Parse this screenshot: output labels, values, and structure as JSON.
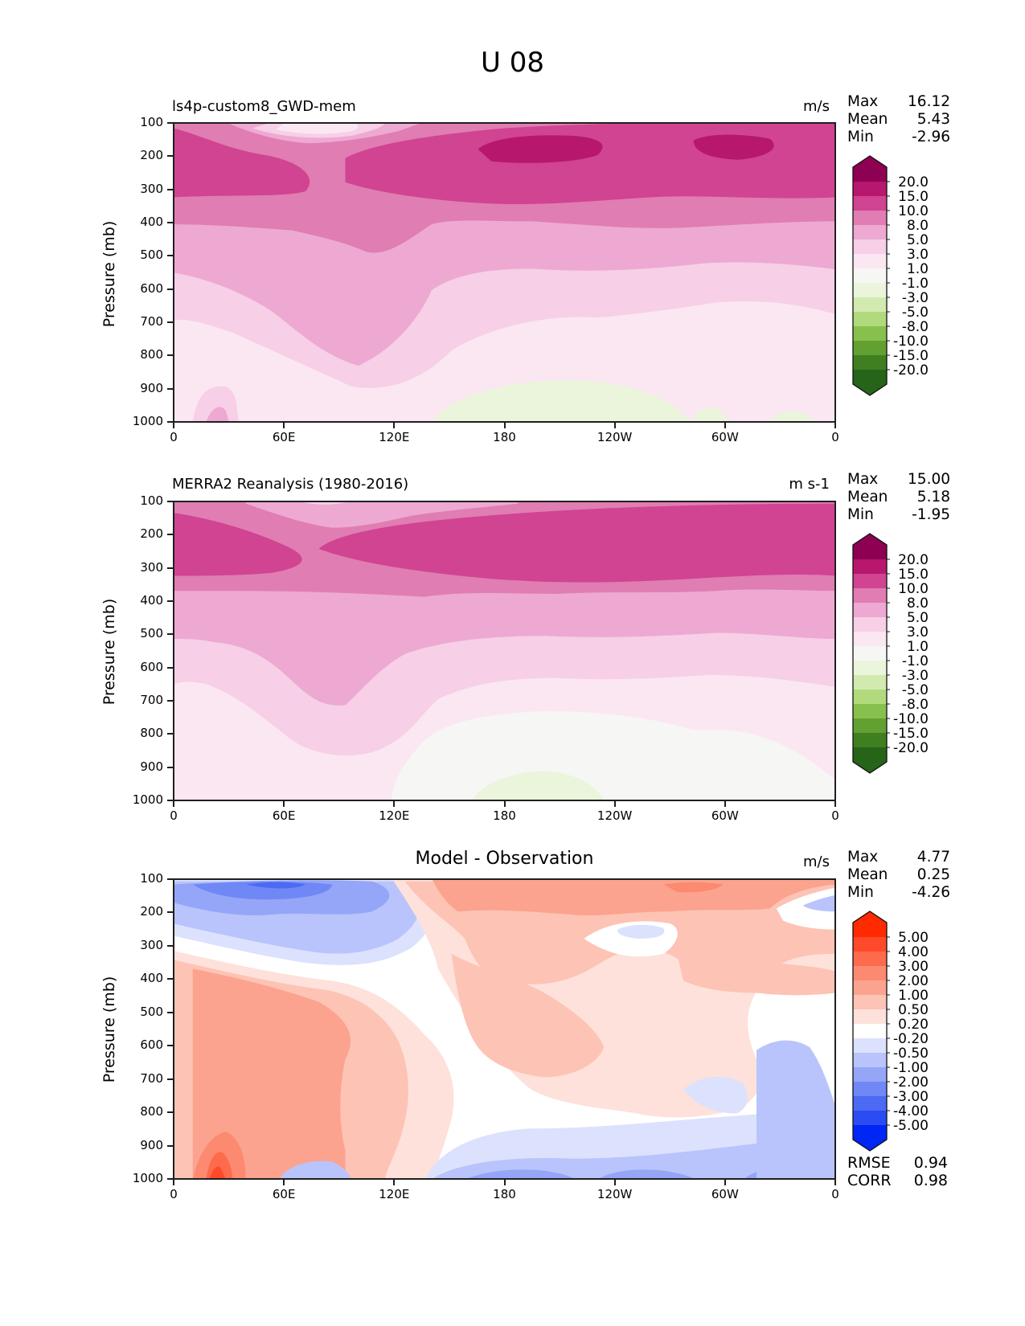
{
  "figure": {
    "title": "U 08"
  },
  "chart_data": [
    {
      "type": "heatmap",
      "subtype": "filled-contour",
      "title": "ls4p-custom8_GWD-mem",
      "units": "m/s",
      "xlabel": "",
      "ylabel": "Pressure (mb)",
      "x_ticks": [
        "0",
        "60E",
        "120E",
        "180",
        "120W",
        "60W",
        "0"
      ],
      "x_range": [
        "0",
        "360 (0)"
      ],
      "y_ticks": [
        "100",
        "200",
        "300",
        "400",
        "500",
        "600",
        "700",
        "800",
        "900",
        "1000"
      ],
      "ylim": [
        1000,
        100
      ],
      "stats": {
        "max_label": "Max",
        "max": "16.12",
        "mean_label": "Mean",
        "mean": "5.43",
        "min_label": "Min",
        "min": "-2.96"
      },
      "colorbar": {
        "levels": [
          "20.0",
          "15.0",
          "10.0",
          "8.0",
          "5.0",
          "3.0",
          "1.0",
          "-1.0",
          "-3.0",
          "-5.0",
          "-8.0",
          "-10.0",
          "-15.0",
          "-20.0"
        ],
        "colors": [
          "#8e0152",
          "#b8176e",
          "#d04492",
          "#e07db2",
          "#eda9d2",
          "#f7cfe6",
          "#fbe7f1",
          "#f6f6f4",
          "#eaf5dc",
          "#d2eab0",
          "#b0da7c",
          "#88c04d",
          "#63a032",
          "#3f7f20",
          "#266419"
        ],
        "extend": "both"
      },
      "features": [
        "Upper-level westerly jet 15-20 m/s near 200 mb around 180 and 60W",
        "Weak negative (easterly) values near surface between 150E and 60W"
      ]
    },
    {
      "type": "heatmap",
      "subtype": "filled-contour",
      "title": "MERRA2 Reanalysis (1980-2016)",
      "units": "m s-1",
      "xlabel": "",
      "ylabel": "Pressure (mb)",
      "x_ticks": [
        "0",
        "60E",
        "120E",
        "180",
        "120W",
        "60W",
        "0"
      ],
      "y_ticks": [
        "100",
        "200",
        "300",
        "400",
        "500",
        "600",
        "700",
        "800",
        "900",
        "1000"
      ],
      "ylim": [
        1000,
        100
      ],
      "stats": {
        "max_label": "Max",
        "max": "15.00",
        "mean_label": "Mean",
        "mean": "5.18",
        "min_label": "Min",
        "min": "-1.95"
      },
      "colorbar": {
        "levels": [
          "20.0",
          "15.0",
          "10.0",
          "8.0",
          "5.0",
          "3.0",
          "1.0",
          "-1.0",
          "-3.0",
          "-5.0",
          "-8.0",
          "-10.0",
          "-15.0",
          "-20.0"
        ],
        "colors": [
          "#8e0152",
          "#b8176e",
          "#d04492",
          "#e07db2",
          "#eda9d2",
          "#f7cfe6",
          "#fbe7f1",
          "#f6f6f4",
          "#eaf5dc",
          "#d2eab0",
          "#b0da7c",
          "#88c04d",
          "#63a032",
          "#3f7f20",
          "#266419"
        ],
        "extend": "both"
      }
    },
    {
      "type": "heatmap",
      "subtype": "filled-contour",
      "title": "Model - Observation",
      "units": "m/s",
      "xlabel": "",
      "ylabel": "Pressure (mb)",
      "x_ticks": [
        "0",
        "60E",
        "120E",
        "180",
        "120W",
        "60W",
        "0"
      ],
      "y_ticks": [
        "100",
        "200",
        "300",
        "400",
        "500",
        "600",
        "700",
        "800",
        "900",
        "1000"
      ],
      "ylim": [
        1000,
        100
      ],
      "stats": {
        "max_label": "Max",
        "max": "4.77",
        "mean_label": "Mean",
        "mean": "0.25",
        "min_label": "Min",
        "min": "-4.26"
      },
      "colorbar": {
        "levels": [
          "5.00",
          "4.00",
          "3.00",
          "2.00",
          "1.00",
          "0.50",
          "0.20",
          "-0.20",
          "-0.50",
          "-1.00",
          "-2.00",
          "-3.00",
          "-4.00",
          "-5.00"
        ],
        "colors": [
          "#ff2a00",
          "#fe4a2a",
          "#fd6a4c",
          "#fc8a70",
          "#fba38e",
          "#fdc3b5",
          "#fee1da",
          "#ffffff",
          "#dce2fd",
          "#b8c4fb",
          "#95a6f8",
          "#7088f6",
          "#4c6af3",
          "#2a4cf2",
          "#0026f5"
        ],
        "extend": "both"
      },
      "metrics": {
        "rmse_label": "RMSE",
        "rmse": "0.94",
        "corr_label": "CORR",
        "corr": "0.98"
      }
    }
  ]
}
